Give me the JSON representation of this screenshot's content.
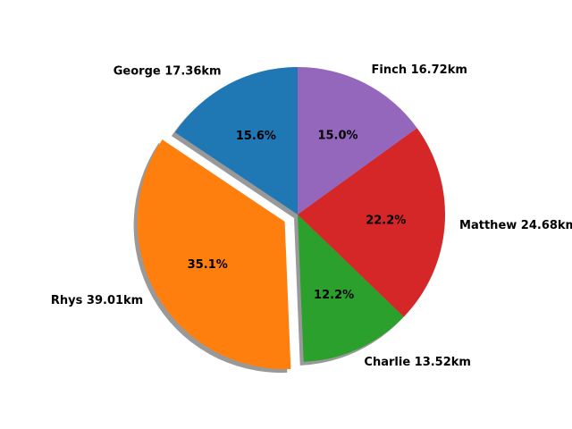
{
  "chart_data": {
    "type": "pie",
    "labels": [
      "George",
      "Rhys",
      "Charlie",
      "Matthew",
      "Finch"
    ],
    "label_texts": [
      "George 17.36km",
      "Rhys 39.01km",
      "Charlie 13.52km",
      "Matthew 24.68km",
      "Finch 16.72km"
    ],
    "values": [
      17.36,
      39.01,
      13.52,
      24.68,
      16.72
    ],
    "unit": "km",
    "percent_texts": [
      "15.6%",
      "35.1%",
      "12.2%",
      "22.2%",
      "15.0%"
    ],
    "colors": [
      "#1f77b4",
      "#ff7f0e",
      "#2ca02c",
      "#d62728",
      "#9467bd"
    ],
    "explode": [
      0,
      0.1,
      0,
      0,
      0
    ],
    "start_angle_deg": 90,
    "direction": "counterclockwise",
    "shadow": true,
    "title": "",
    "legend": "none"
  }
}
